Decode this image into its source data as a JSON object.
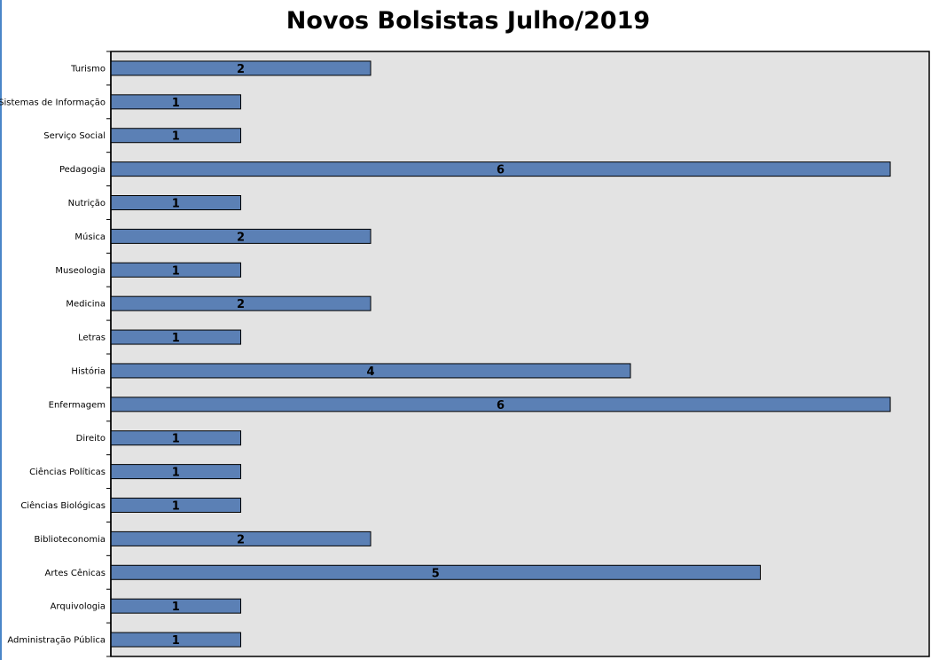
{
  "chart_data": {
    "type": "bar",
    "orientation": "horizontal",
    "title": "Novos Bolsistas Julho/2019",
    "xlabel": "",
    "ylabel": "",
    "xlim": [
      0,
      6.3
    ],
    "grid": false,
    "legend": "none",
    "colors": {
      "bar": "#5b80b5",
      "bar_border": "#000000",
      "plot_bg": "#e3e3e3"
    },
    "categories": [
      "Turismo",
      "Sistemas de Informação",
      "Serviço Social",
      "Pedagogia",
      "Nutrição",
      "Música",
      "Museologia",
      "Medicina",
      "Letras",
      "História",
      "Enfermagem",
      "Direito",
      "Ciências Políticas",
      "Ciências Biológicas",
      "Biblioteconomia",
      "Artes Cênicas",
      "Arquivologia",
      "Administração Pública"
    ],
    "values": [
      2,
      1,
      1,
      6,
      1,
      2,
      1,
      2,
      1,
      4,
      6,
      1,
      1,
      1,
      2,
      5,
      1,
      1
    ]
  }
}
